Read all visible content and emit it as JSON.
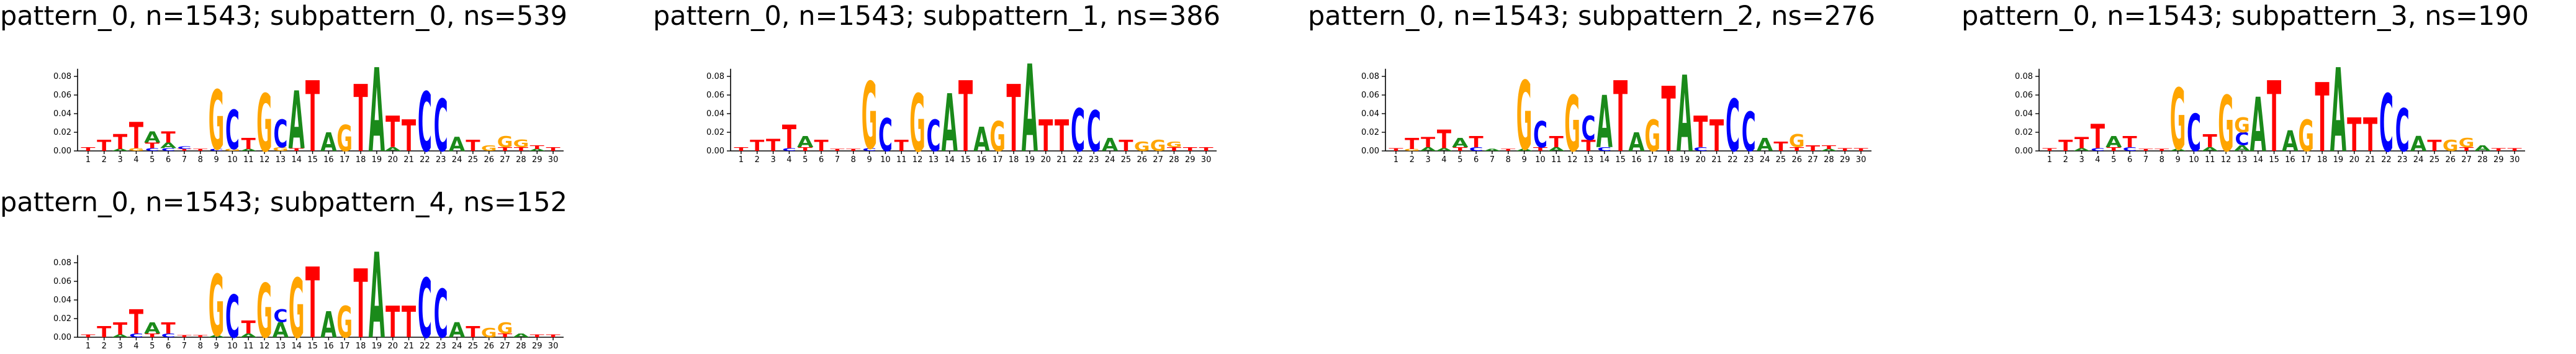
{
  "colors": {
    "A": "#1a8a1a",
    "C": "#0000ff",
    "G": "#ffa500",
    "T": "#ff0000"
  },
  "chart_data": [
    {
      "type": "sequence-logo",
      "title": "pattern_0, n=1543; subpattern_0, ns=539",
      "positions": [
        1,
        2,
        3,
        4,
        5,
        6,
        7,
        8,
        9,
        10,
        11,
        12,
        13,
        14,
        15,
        16,
        17,
        18,
        19,
        20,
        21,
        22,
        23,
        24,
        25,
        26,
        27,
        28,
        29,
        30
      ],
      "yticks": [
        "0.00",
        "0.02",
        "0.04",
        "0.06",
        "0.08"
      ],
      "ylim": [
        0,
        0.09
      ],
      "stacks": [
        [
          [
            "T",
            0.004
          ]
        ],
        [
          [
            "T",
            0.012
          ]
        ],
        [
          [
            "A",
            0.002
          ],
          [
            "T",
            0.016
          ]
        ],
        [
          [
            "G",
            0.003
          ],
          [
            "T",
            0.028
          ]
        ],
        [
          [
            "C",
            0.003
          ],
          [
            "T",
            0.006
          ],
          [
            "A",
            0.012
          ]
        ],
        [
          [
            "C",
            0.003
          ],
          [
            "A",
            0.006
          ],
          [
            "T",
            0.012
          ]
        ],
        [
          [
            "T",
            0.002
          ],
          [
            "C",
            0.003
          ]
        ],
        [
          [
            "T",
            0.002
          ]
        ],
        [
          [
            "C",
            0.002
          ],
          [
            "G",
            0.064
          ]
        ],
        [
          [
            "G",
            0.002
          ],
          [
            "C",
            0.042
          ]
        ],
        [
          [
            "A",
            0.002
          ],
          [
            "T",
            0.012
          ]
        ],
        [
          [
            "G",
            0.062
          ]
        ],
        [
          [
            "G",
            0.004
          ],
          [
            "C",
            0.03
          ]
        ],
        [
          [
            "T",
            0.003
          ],
          [
            "A",
            0.062
          ]
        ],
        [
          [
            "T",
            0.076
          ]
        ],
        [
          [
            "A",
            0.02
          ]
        ],
        [
          [
            "G",
            0.028
          ]
        ],
        [
          [
            "T",
            0.072
          ]
        ],
        [
          [
            "A",
            0.09
          ]
        ],
        [
          [
            "A",
            0.004
          ],
          [
            "T",
            0.034
          ]
        ],
        [
          [
            "T",
            0.034
          ]
        ],
        [
          [
            "C",
            0.064
          ]
        ],
        [
          [
            "C",
            0.056
          ]
        ],
        [
          [
            "A",
            0.015
          ]
        ],
        [
          [
            "T",
            0.012
          ]
        ],
        [
          [
            "G",
            0.006
          ]
        ],
        [
          [
            "T",
            0.004
          ],
          [
            "G",
            0.012
          ]
        ],
        [
          [
            "T",
            0.004
          ],
          [
            "G",
            0.008
          ]
        ],
        [
          [
            "A",
            0.002
          ],
          [
            "T",
            0.004
          ]
        ],
        [
          [
            "T",
            0.004
          ]
        ]
      ]
    },
    {
      "type": "sequence-logo",
      "title": "pattern_0, n=1543; subpattern_1, ns=386",
      "positions": [
        1,
        2,
        3,
        4,
        5,
        6,
        7,
        8,
        9,
        10,
        11,
        12,
        13,
        14,
        15,
        16,
        17,
        18,
        19,
        20,
        21,
        22,
        23,
        24,
        25,
        26,
        27,
        28,
        29,
        30
      ],
      "yticks": [
        "0.00",
        "0.02",
        "0.04",
        "0.06",
        "0.08"
      ],
      "ylim": [
        0,
        0.09
      ],
      "stacks": [
        [
          [
            "T",
            0.004
          ]
        ],
        [
          [
            "T",
            0.012
          ]
        ],
        [
          [
            "T",
            0.013
          ]
        ],
        [
          [
            "C",
            0.003
          ],
          [
            "T",
            0.025
          ]
        ],
        [
          [
            "T",
            0.004
          ],
          [
            "A",
            0.012
          ]
        ],
        [
          [
            "T",
            0.012
          ]
        ],
        [
          [
            "T",
            0.002
          ]
        ],
        [
          [
            "T",
            0.002
          ]
        ],
        [
          [
            "C",
            0.003
          ],
          [
            "G",
            0.072
          ]
        ],
        [
          [
            "C",
            0.035
          ]
        ],
        [
          [
            "T",
            0.012
          ]
        ],
        [
          [
            "G",
            0.062
          ]
        ],
        [
          [
            "C",
            0.034
          ]
        ],
        [
          [
            "A",
            0.062
          ]
        ],
        [
          [
            "T",
            0.076
          ]
        ],
        [
          [
            "A",
            0.026
          ]
        ],
        [
          [
            "G",
            0.032
          ]
        ],
        [
          [
            "T",
            0.072
          ]
        ],
        [
          [
            "A",
            0.094
          ]
        ],
        [
          [
            "T",
            0.034
          ]
        ],
        [
          [
            "T",
            0.034
          ]
        ],
        [
          [
            "C",
            0.046
          ]
        ],
        [
          [
            "C",
            0.044
          ]
        ],
        [
          [
            "A",
            0.014
          ]
        ],
        [
          [
            "T",
            0.012
          ]
        ],
        [
          [
            "G",
            0.01
          ]
        ],
        [
          [
            "G",
            0.012
          ]
        ],
        [
          [
            "T",
            0.004
          ],
          [
            "G",
            0.006
          ]
        ],
        [
          [
            "T",
            0.004
          ]
        ],
        [
          [
            "T",
            0.004
          ]
        ]
      ]
    },
    {
      "type": "sequence-logo",
      "title": "pattern_0, n=1543; subpattern_2, ns=276",
      "positions": [
        1,
        2,
        3,
        4,
        5,
        6,
        7,
        8,
        9,
        10,
        11,
        12,
        13,
        14,
        15,
        16,
        17,
        18,
        19,
        20,
        21,
        22,
        23,
        24,
        25,
        26,
        27,
        28,
        29,
        30
      ],
      "yticks": [
        "0.00",
        "0.02",
        "0.04",
        "0.06",
        "0.08"
      ],
      "ylim": [
        0,
        0.09
      ],
      "stacks": [
        [
          [
            "T",
            0.003
          ]
        ],
        [
          [
            "G",
            0.002
          ],
          [
            "T",
            0.012
          ]
        ],
        [
          [
            "A",
            0.004
          ],
          [
            "T",
            0.011
          ]
        ],
        [
          [
            "A",
            0.003
          ],
          [
            "T",
            0.02
          ]
        ],
        [
          [
            "T",
            0.004
          ],
          [
            "A",
            0.01
          ]
        ],
        [
          [
            "C",
            0.004
          ],
          [
            "T",
            0.012
          ]
        ],
        [
          [
            "A",
            0.002
          ]
        ],
        [
          [
            "T",
            0.002
          ]
        ],
        [
          [
            "A",
            0.002
          ],
          [
            "G",
            0.074
          ]
        ],
        [
          [
            "T",
            0.004
          ],
          [
            "C",
            0.028
          ]
        ],
        [
          [
            "A",
            0.004
          ],
          [
            "T",
            0.012
          ]
        ],
        [
          [
            "G",
            0.06
          ]
        ],
        [
          [
            "T",
            0.012
          ],
          [
            "C",
            0.026
          ]
        ],
        [
          [
            "C",
            0.004
          ],
          [
            "A",
            0.056
          ]
        ],
        [
          [
            "T",
            0.076
          ]
        ],
        [
          [
            "A",
            0.02
          ]
        ],
        [
          [
            "G",
            0.034
          ]
        ],
        [
          [
            "T",
            0.07
          ]
        ],
        [
          [
            "A",
            0.082
          ]
        ],
        [
          [
            "C",
            0.004
          ],
          [
            "T",
            0.034
          ]
        ],
        [
          [
            "T",
            0.034
          ]
        ],
        [
          [
            "C",
            0.056
          ]
        ],
        [
          [
            "C",
            0.042
          ]
        ],
        [
          [
            "A",
            0.014
          ]
        ],
        [
          [
            "T",
            0.01
          ]
        ],
        [
          [
            "T",
            0.004
          ],
          [
            "G",
            0.014
          ]
        ],
        [
          [
            "T",
            0.006
          ]
        ],
        [
          [
            "A",
            0.002
          ],
          [
            "T",
            0.004
          ]
        ],
        [
          [
            "T",
            0.003
          ]
        ],
        [
          [
            "T",
            0.003
          ]
        ]
      ]
    },
    {
      "type": "sequence-logo",
      "title": "pattern_0, n=1543; subpattern_3, ns=190",
      "positions": [
        1,
        2,
        3,
        4,
        5,
        6,
        7,
        8,
        9,
        10,
        11,
        12,
        13,
        14,
        15,
        16,
        17,
        18,
        19,
        20,
        21,
        22,
        23,
        24,
        25,
        26,
        27,
        28,
        29,
        30
      ],
      "yticks": [
        "0.00",
        "0.02",
        "0.04",
        "0.06",
        "0.08"
      ],
      "ylim": [
        0,
        0.09
      ],
      "stacks": [
        [
          [
            "T",
            0.003
          ]
        ],
        [
          [
            "T",
            0.012
          ]
        ],
        [
          [
            "A",
            0.003
          ],
          [
            "T",
            0.012
          ]
        ],
        [
          [
            "C",
            0.003
          ],
          [
            "T",
            0.026
          ]
        ],
        [
          [
            "T",
            0.004
          ],
          [
            "A",
            0.012
          ]
        ],
        [
          [
            "C",
            0.004
          ],
          [
            "T",
            0.012
          ]
        ],
        [
          [
            "T",
            0.002
          ]
        ],
        [
          [
            "T",
            0.002
          ]
        ],
        [
          [
            "A",
            0.002
          ],
          [
            "G",
            0.066
          ]
        ],
        [
          [
            "C",
            0.04
          ]
        ],
        [
          [
            "A",
            0.004
          ],
          [
            "T",
            0.014
          ]
        ],
        [
          [
            "G",
            0.06
          ]
        ],
        [
          [
            "A",
            0.006
          ],
          [
            "C",
            0.014
          ],
          [
            "G",
            0.016
          ]
        ],
        [
          [
            "A",
            0.058
          ]
        ],
        [
          [
            "T",
            0.076
          ]
        ],
        [
          [
            "A",
            0.022
          ]
        ],
        [
          [
            "G",
            0.034
          ]
        ],
        [
          [
            "T",
            0.074
          ]
        ],
        [
          [
            "A",
            0.09
          ]
        ],
        [
          [
            "T",
            0.036
          ]
        ],
        [
          [
            "T",
            0.036
          ]
        ],
        [
          [
            "C",
            0.062
          ]
        ],
        [
          [
            "C",
            0.046
          ]
        ],
        [
          [
            "A",
            0.016
          ]
        ],
        [
          [
            "T",
            0.012
          ]
        ],
        [
          [
            "G",
            0.012
          ]
        ],
        [
          [
            "T",
            0.004
          ],
          [
            "G",
            0.01
          ]
        ],
        [
          [
            "A",
            0.006
          ]
        ],
        [
          [
            "T",
            0.003
          ]
        ],
        [
          [
            "T",
            0.003
          ]
        ]
      ]
    },
    {
      "type": "sequence-logo",
      "title": "pattern_0, n=1543; subpattern_4, ns=152",
      "positions": [
        1,
        2,
        3,
        4,
        5,
        6,
        7,
        8,
        9,
        10,
        11,
        12,
        13,
        14,
        15,
        16,
        17,
        18,
        19,
        20,
        21,
        22,
        23,
        24,
        25,
        26,
        27,
        28,
        29,
        30
      ],
      "yticks": [
        "0.00",
        "0.02",
        "0.04",
        "0.06",
        "0.08"
      ],
      "ylim": [
        0,
        0.09
      ],
      "stacks": [
        [
          [
            "T",
            0.003
          ]
        ],
        [
          [
            "T",
            0.012
          ]
        ],
        [
          [
            "A",
            0.003
          ],
          [
            "T",
            0.013
          ]
        ],
        [
          [
            "C",
            0.004
          ],
          [
            "T",
            0.026
          ]
        ],
        [
          [
            "T",
            0.004
          ],
          [
            "A",
            0.012
          ]
        ],
        [
          [
            "C",
            0.004
          ],
          [
            "T",
            0.012
          ]
        ],
        [
          [
            "T",
            0.002
          ]
        ],
        [
          [
            "T",
            0.002
          ]
        ],
        [
          [
            "A",
            0.002
          ],
          [
            "G",
            0.066
          ]
        ],
        [
          [
            "C",
            0.046
          ]
        ],
        [
          [
            "A",
            0.004
          ],
          [
            "T",
            0.014
          ]
        ],
        [
          [
            "G",
            0.058
          ]
        ],
        [
          [
            "A",
            0.016
          ],
          [
            "C",
            0.014
          ]
        ],
        [
          [
            "G",
            0.064
          ]
        ],
        [
          [
            "T",
            0.076
          ]
        ],
        [
          [
            "A",
            0.028
          ]
        ],
        [
          [
            "G",
            0.034
          ]
        ],
        [
          [
            "T",
            0.074
          ]
        ],
        [
          [
            "A",
            0.092
          ]
        ],
        [
          [
            "T",
            0.034
          ]
        ],
        [
          [
            "T",
            0.034
          ]
        ],
        [
          [
            "C",
            0.064
          ]
        ],
        [
          [
            "C",
            0.052
          ]
        ],
        [
          [
            "A",
            0.016
          ]
        ],
        [
          [
            "T",
            0.012
          ]
        ],
        [
          [
            "G",
            0.01
          ]
        ],
        [
          [
            "T",
            0.004
          ],
          [
            "G",
            0.012
          ]
        ],
        [
          [
            "A",
            0.004
          ]
        ],
        [
          [
            "T",
            0.003
          ]
        ],
        [
          [
            "T",
            0.003
          ]
        ]
      ]
    }
  ]
}
